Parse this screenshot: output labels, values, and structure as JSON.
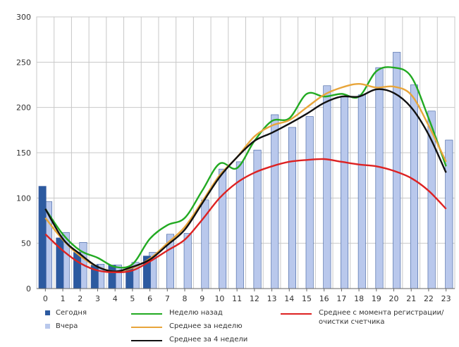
{
  "chart_data": {
    "type": "bar",
    "title": "",
    "xlabel": "",
    "ylabel": "",
    "ylim": [
      0,
      300
    ],
    "yticks": [
      "0",
      "50",
      "100",
      "150",
      "200",
      "250",
      "300"
    ],
    "categories": [
      "0",
      "1",
      "2",
      "3",
      "4",
      "5",
      "6",
      "7",
      "8",
      "9",
      "10",
      "11",
      "12",
      "13",
      "14",
      "15",
      "16",
      "17",
      "18",
      "19",
      "20",
      "21",
      "22",
      "23"
    ],
    "grid": true,
    "legend_position": "bottom",
    "bar_series": [
      {
        "name": "Сегодня",
        "color": "#2c5aa0",
        "values": [
          113,
          56,
          40,
          26,
          26,
          24,
          36,
          null,
          null,
          null,
          null,
          null,
          null,
          null,
          null,
          null,
          null,
          null,
          null,
          null,
          null,
          null,
          null,
          null
        ]
      },
      {
        "name": "Вчера",
        "color": "#b9c8ec",
        "values": [
          96,
          62,
          51,
          27,
          26,
          29,
          40,
          60,
          61,
          98,
          132,
          140,
          153,
          192,
          178,
          190,
          224,
          212,
          214,
          244,
          261,
          225,
          196,
          164
        ]
      }
    ],
    "line_series": [
      {
        "name": "Неделю назад",
        "color": "#22aa22",
        "values": [
          88,
          60,
          42,
          34,
          24,
          27,
          55,
          70,
          78,
          108,
          138,
          133,
          163,
          185,
          188,
          215,
          212,
          215,
          212,
          240,
          244,
          234,
          188,
          135
        ]
      },
      {
        "name": "Среднее за неделю",
        "color": "#e8a53a",
        "values": [
          78,
          54,
          36,
          24,
          19,
          23,
          33,
          50,
          68,
          96,
          125,
          145,
          168,
          180,
          186,
          200,
          214,
          222,
          226,
          222,
          223,
          214,
          180,
          140
        ]
      },
      {
        "name": "Среднее за 4 недели",
        "color": "#111111",
        "values": [
          88,
          55,
          38,
          24,
          19,
          24,
          32,
          48,
          65,
          94,
          123,
          145,
          163,
          172,
          182,
          193,
          205,
          212,
          212,
          220,
          216,
          200,
          170,
          128
        ]
      },
      {
        "name": "Среднее с момента регистрации/очистки счетчика",
        "color": "#dd2222",
        "values": [
          60,
          42,
          28,
          20,
          18,
          20,
          30,
          42,
          54,
          76,
          100,
          117,
          128,
          135,
          140,
          142,
          143,
          140,
          137,
          135,
          130,
          122,
          108,
          88
        ]
      }
    ]
  }
}
